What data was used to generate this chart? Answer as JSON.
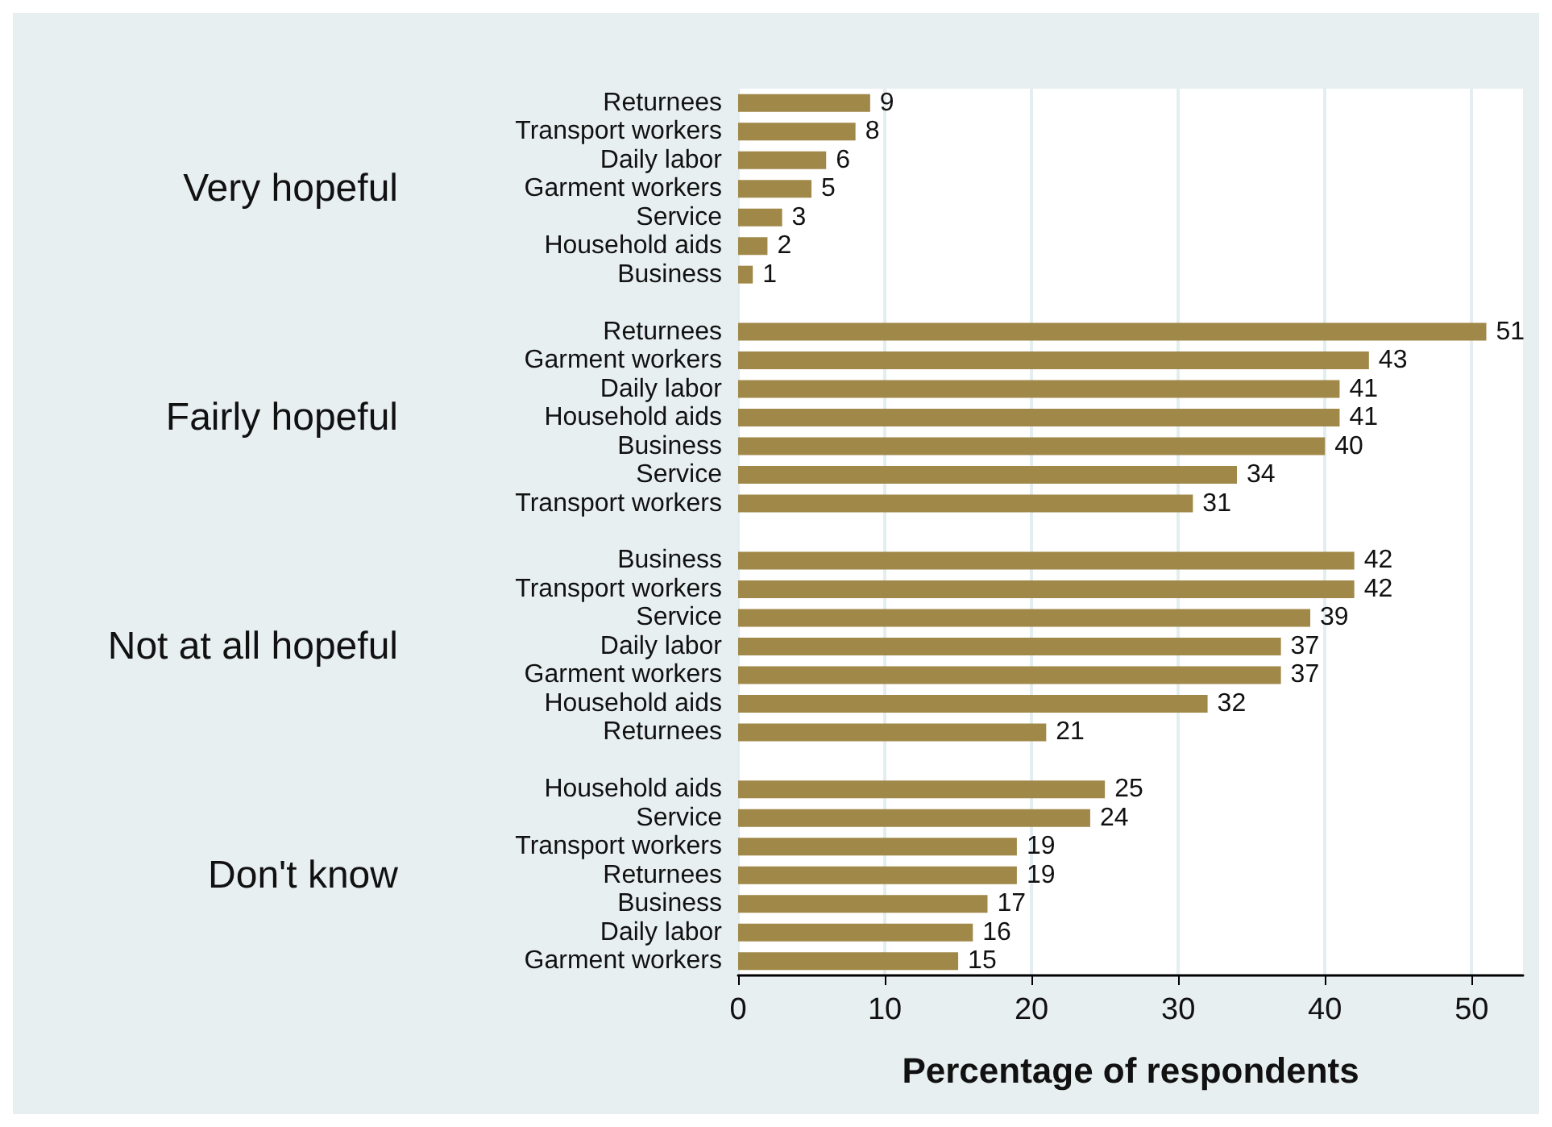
{
  "chart_data": {
    "type": "bar",
    "orientation": "horizontal",
    "xlabel": "Percentage of respondents",
    "categories": [
      "Returnees",
      "Transport workers",
      "Daily labor",
      "Garment workers",
      "Service",
      "Household aids",
      "Business",
      null,
      "Returnees",
      "Garment workers",
      "Daily labor",
      "Household aids",
      "Business",
      "Service",
      "Transport workers",
      null,
      "Business",
      "Transport workers",
      "Service",
      "Daily labor",
      "Garment workers",
      "Household aids",
      "Returnees",
      null,
      "Household aids",
      "Service",
      "Transport workers",
      "Returnees",
      "Business",
      "Daily labor",
      "Garment workers"
    ],
    "values": [
      9,
      8,
      6,
      5,
      3,
      2,
      1,
      null,
      51,
      43,
      41,
      41,
      40,
      34,
      31,
      null,
      42,
      42,
      39,
      37,
      37,
      32,
      21,
      null,
      25,
      24,
      19,
      19,
      17,
      16,
      15
    ],
    "color": "#a08848",
    "annotations": [
      "Very hopeful",
      "Fairly hopeful",
      "Not at all hopeful",
      "Don't know"
    ],
    "xlim": [
      0,
      53.5
    ],
    "xticks": [
      0,
      10,
      20,
      30,
      40,
      50
    ],
    "grid": "x",
    "data_labels": true
  }
}
